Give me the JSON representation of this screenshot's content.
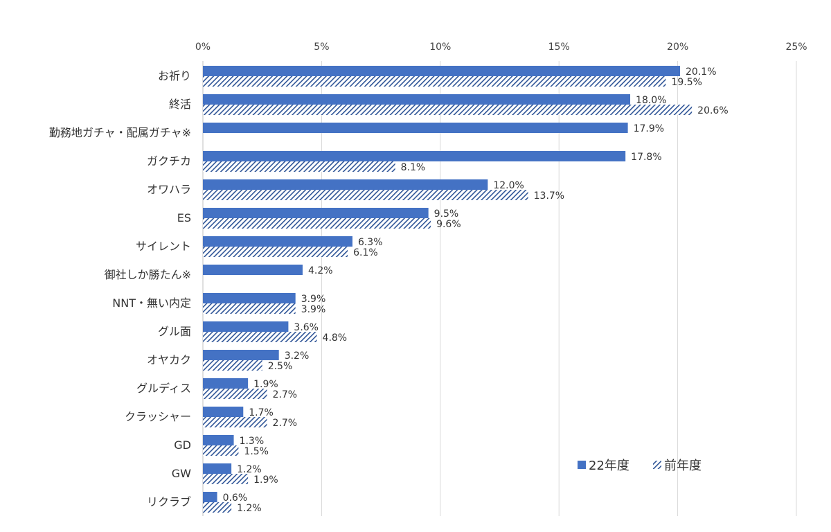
{
  "chart_data": {
    "type": "bar",
    "orientation": "horizontal",
    "title": "",
    "xlabel": "",
    "ylabel": "",
    "xlim": [
      0,
      25
    ],
    "x_ticks": [
      "0%",
      "5%",
      "10%",
      "15%",
      "20%",
      "25%"
    ],
    "x_tick_values": [
      0,
      5,
      10,
      15,
      20,
      25
    ],
    "grid": "vertical",
    "legend_position": "bottom-right",
    "categories": [
      "お祈り",
      "終活",
      "勤務地ガチャ・配属ガチャ※",
      "ガクチカ",
      "オワハラ",
      "ES",
      "サイレント",
      "御社しか勝たん※",
      "NNT・無い内定",
      "グル面",
      "オヤカク",
      "グルディス",
      "クラッシャー",
      "GD",
      "GW",
      "リクラブ"
    ],
    "series": [
      {
        "name": "22年度",
        "color": "#4472c4",
        "pattern": "solid",
        "values": [
          20.1,
          18.0,
          17.9,
          17.8,
          12.0,
          9.5,
          6.3,
          4.2,
          3.9,
          3.6,
          3.2,
          1.9,
          1.7,
          1.3,
          1.2,
          0.6
        ],
        "labels": [
          "20.1%",
          "18.0%",
          "17.9%",
          "17.8%",
          "12.0%",
          "9.5%",
          "6.3%",
          "4.2%",
          "3.9%",
          "3.6%",
          "3.2%",
          "1.9%",
          "1.7%",
          "1.3%",
          "1.2%",
          "0.6%"
        ]
      },
      {
        "name": "前年度",
        "color": "#2f5597",
        "pattern": "hatched",
        "values": [
          19.5,
          20.6,
          null,
          8.1,
          13.7,
          9.6,
          6.1,
          null,
          3.9,
          4.8,
          2.5,
          2.7,
          2.7,
          1.5,
          1.9,
          1.2
        ],
        "labels": [
          "19.5%",
          "20.6%",
          null,
          "8.1%",
          "13.7%",
          "9.6%",
          "6.1%",
          null,
          "3.9%",
          "4.8%",
          "2.5%",
          "2.7%",
          "2.7%",
          "1.5%",
          "1.9%",
          "1.2%"
        ]
      }
    ]
  }
}
